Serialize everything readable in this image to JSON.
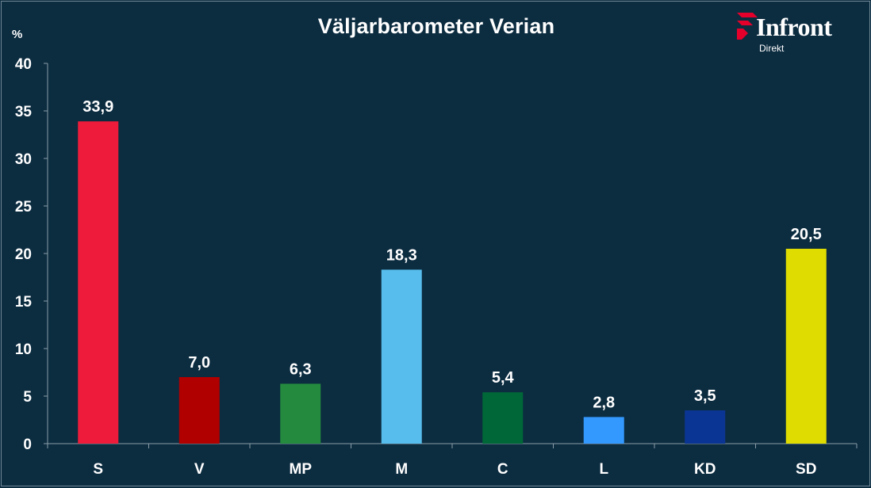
{
  "chart_data": {
    "type": "bar",
    "title": "Väljarbarometer Verian",
    "ylabel": "%",
    "ylim": [
      0,
      40
    ],
    "yticks": [
      0,
      5,
      10,
      15,
      20,
      25,
      30,
      35,
      40
    ],
    "grid": false,
    "categories": [
      "S",
      "V",
      "MP",
      "M",
      "C",
      "L",
      "KD",
      "SD"
    ],
    "values": [
      33.9,
      7.0,
      6.3,
      18.3,
      5.4,
      2.8,
      3.5,
      20.5
    ],
    "value_labels": [
      "33,9",
      "7,0",
      "6,3",
      "18,3",
      "5,4",
      "2,8",
      "3,5",
      "20,5"
    ],
    "colors": [
      "#ee1c3a",
      "#b00000",
      "#238a3e",
      "#56bdec",
      "#006838",
      "#3399ff",
      "#0b3594",
      "#dedc00"
    ]
  },
  "logo": {
    "name": "Infront",
    "subtitle": "Direkt",
    "accent": "#e4002b"
  }
}
